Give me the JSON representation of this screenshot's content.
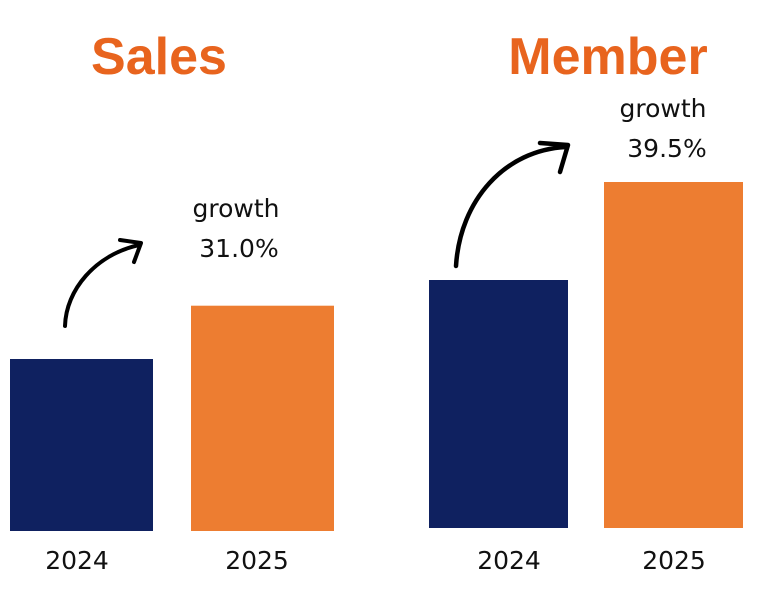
{
  "colors": {
    "title": "#e8641e",
    "bar_2024": "#0f2160",
    "bar_2025": "#ed7d31",
    "arrow": "#000000"
  },
  "chart_data": [
    {
      "type": "bar",
      "title": "Sales",
      "categories": [
        "2024",
        "2025"
      ],
      "values": [
        1.0,
        1.31
      ],
      "annotation": {
        "label": "growth",
        "value": "31.0%"
      },
      "arrow_icon": "curved-arrow-icon"
    },
    {
      "type": "bar",
      "title": "Member",
      "categories": [
        "2024",
        "2025"
      ],
      "values": [
        1.0,
        1.395
      ],
      "annotation": {
        "label": "growth",
        "value": "39.5%"
      },
      "arrow_icon": "curved-arrow-icon"
    }
  ]
}
